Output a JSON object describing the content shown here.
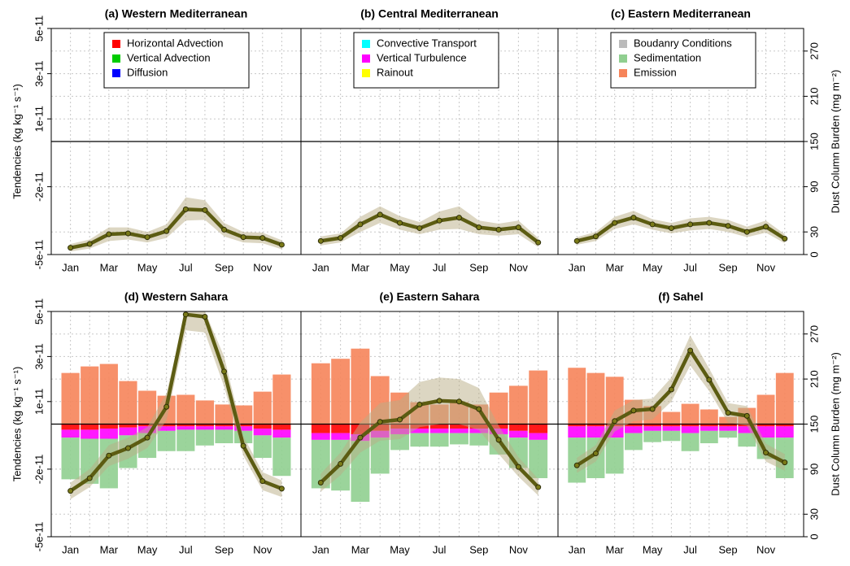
{
  "chart_data": [
    {
      "type": "bar-line",
      "title": "(a) Western Mediterranean",
      "ylabel": "Tendencies (kg kg⁻¹ s⁻¹)",
      "categories": [
        "Jan",
        null,
        "Mar",
        null,
        "May",
        null,
        "Jul",
        null,
        "Sep",
        null,
        "Nov",
        null
      ],
      "ylim": [
        -5e-11,
        5e-11
      ],
      "y2lim": [
        0,
        300
      ],
      "grid": true,
      "yticks": [
        {
          "value": 5e-11,
          "label": "5e-11"
        },
        {
          "value": 3e-11,
          "label": "3e-11"
        },
        {
          "value": 1e-11,
          "label": "1e-11"
        },
        {
          "value": -2e-11,
          "label": "-2e-11"
        },
        {
          "value": -5e-11,
          "label": "-5e-11"
        }
      ],
      "series": [
        {
          "name": "Horizontal Advection",
          "color": "#ff0000",
          "values": [
            0,
            0,
            0,
            0,
            0,
            0,
            0,
            0,
            0,
            0,
            0,
            0
          ]
        },
        {
          "name": "Vertical Advection",
          "color": "#00cc00",
          "values": [
            0,
            0,
            0,
            0,
            0,
            0,
            0,
            0,
            0,
            0,
            0,
            0
          ]
        },
        {
          "name": "Diffusion",
          "color": "#0000ff",
          "values": [
            0,
            0,
            0,
            0,
            0,
            0,
            0,
            0,
            0,
            0,
            0,
            0
          ]
        },
        {
          "axis": "y2",
          "color": "#5c5c12",
          "values": [
            9,
            14,
            27,
            28,
            23,
            31,
            60,
            59,
            33,
            23,
            22,
            13
          ],
          "lower": [
            4,
            8,
            18,
            20,
            16,
            22,
            45,
            46,
            24,
            16,
            15,
            7
          ],
          "upper": [
            14,
            20,
            36,
            36,
            30,
            40,
            76,
            72,
            42,
            30,
            29,
            19
          ]
        }
      ]
    },
    {
      "type": "bar-line",
      "title": "(b) Central Mediterranean",
      "categories": [
        "Jan",
        null,
        "Mar",
        null,
        "May",
        null,
        "Jul",
        null,
        "Sep",
        null,
        "Nov",
        null
      ],
      "ylim": [
        -5e-11,
        5e-11
      ],
      "y2lim": [
        0,
        300
      ],
      "grid": true,
      "series": [
        {
          "name": "Convective Transport",
          "color": "#00ffff",
          "values": [
            0,
            0,
            0,
            0,
            0,
            0,
            0,
            0,
            0,
            0,
            0,
            0
          ]
        },
        {
          "name": "Vertical Turbulence",
          "color": "#ff00ff",
          "values": [
            0,
            0,
            0,
            0,
            0,
            0,
            0,
            0,
            0,
            0,
            0,
            0
          ]
        },
        {
          "name": "Rainout",
          "color": "#ffff00",
          "values": [
            0,
            0,
            0,
            0,
            0,
            0,
            0,
            0,
            0,
            0,
            0,
            0
          ]
        },
        {
          "axis": "y2",
          "color": "#5c5c12",
          "values": [
            18,
            22,
            40,
            53,
            42,
            35,
            45,
            49,
            36,
            33,
            36,
            16
          ],
          "lower": [
            12,
            16,
            30,
            42,
            33,
            27,
            33,
            34,
            27,
            25,
            27,
            10
          ],
          "upper": [
            24,
            28,
            50,
            64,
            51,
            43,
            57,
            64,
            45,
            41,
            45,
            22
          ]
        }
      ]
    },
    {
      "type": "bar-line",
      "title": "(c) Eastern Mediterranean",
      "y2label": "Dust Column Burden (mg m⁻²)",
      "categories": [
        "Jan",
        null,
        "Mar",
        null,
        "May",
        null,
        "Jul",
        null,
        "Sep",
        null,
        "Nov",
        null
      ],
      "ylim": [
        -5e-11,
        5e-11
      ],
      "y2lim": [
        0,
        300
      ],
      "y2ticks": [
        0,
        30,
        90,
        150,
        210,
        270
      ],
      "grid": true,
      "series": [
        {
          "name": "Boudanry Conditions",
          "color": "#bbbbbb",
          "values": [
            0,
            0,
            0,
            0,
            0,
            0,
            0,
            0,
            0,
            0,
            0,
            0
          ]
        },
        {
          "name": "Sedimentation",
          "color": "#90cf90",
          "values": [
            0,
            0,
            0,
            0,
            0,
            0,
            0,
            0,
            0,
            0,
            0,
            0
          ]
        },
        {
          "name": "Emission",
          "color": "#f6845a",
          "values": [
            0,
            0,
            0,
            0,
            0,
            0,
            0,
            0,
            0,
            0,
            0,
            0
          ]
        },
        {
          "axis": "y2",
          "color": "#5c5c12",
          "values": [
            18,
            24,
            42,
            49,
            40,
            35,
            40,
            42,
            38,
            30,
            37,
            21
          ],
          "lower": [
            13,
            18,
            34,
            40,
            33,
            28,
            32,
            34,
            30,
            23,
            29,
            15
          ],
          "upper": [
            23,
            30,
            50,
            58,
            47,
            42,
            48,
            50,
            46,
            37,
            45,
            27
          ]
        }
      ]
    },
    {
      "type": "bar-line",
      "title": "(d) Western Sahara",
      "ylabel": "Tendencies (kg kg⁻¹ s⁻¹)",
      "categories": [
        "Jan",
        null,
        "Mar",
        null,
        "May",
        null,
        "Jul",
        null,
        "Sep",
        null,
        "Nov",
        null
      ],
      "ylim": [
        -5e-11,
        5e-11
      ],
      "y2lim": [
        0,
        300
      ],
      "grid": true,
      "yticks": [
        {
          "value": 5e-11,
          "label": "5e-11"
        },
        {
          "value": 3e-11,
          "label": "3e-11"
        },
        {
          "value": 1e-11,
          "label": "1e-11"
        },
        {
          "value": -2e-11,
          "label": "-2e-11"
        },
        {
          "value": -5e-11,
          "label": "-5e-11"
        }
      ],
      "series": [
        {
          "color": "#f6845a",
          "values": [
            2.27e-11,
            2.56e-11,
            2.67e-11,
            1.91e-11,
            1.48e-11,
            1.26e-11,
            1.3e-11,
            1.05e-11,
            8.7e-12,
            8.3e-12,
            1.44e-11,
            2.2e-11
          ]
        },
        {
          "color": "#ff0000",
          "values": [
            -2.5e-12,
            -2.5e-12,
            -2e-12,
            -1.5e-12,
            -1e-12,
            -1e-12,
            -1e-12,
            -1e-12,
            -1e-12,
            -1e-12,
            -2e-12,
            -2.5e-12
          ]
        },
        {
          "color": "#ff00ff",
          "values": [
            -3.5e-12,
            -4e-12,
            -4.5e-12,
            -3.5e-12,
            -3e-12,
            -2e-12,
            -1.5e-12,
            -1.5e-12,
            -1.5e-12,
            -2e-12,
            -3e-12,
            -3.5e-12
          ]
        },
        {
          "color": "#90cf90",
          "values": [
            -1.85e-11,
            -2e-11,
            -2.2e-11,
            -1.45e-11,
            -1.1e-11,
            -9e-12,
            -9.5e-12,
            -7e-12,
            -6e-12,
            -5.5e-12,
            -1e-11,
            -1.7e-11
          ]
        },
        {
          "axis": "y2",
          "color": "#5c5c12",
          "values": [
            61,
            78,
            108,
            118,
            132,
            173,
            296,
            293,
            220,
            121,
            74,
            64
          ],
          "lower": [
            50,
            66,
            94,
            104,
            118,
            155,
            275,
            272,
            200,
            108,
            62,
            53
          ],
          "upper": [
            72,
            90,
            122,
            132,
            146,
            191,
            300,
            300,
            240,
            134,
            86,
            75
          ]
        }
      ]
    },
    {
      "type": "bar-line",
      "title": "(e) Eastern Sahara",
      "categories": [
        "Jan",
        null,
        "Mar",
        null,
        "May",
        null,
        "Jul",
        null,
        "Sep",
        null,
        "Nov",
        null
      ],
      "ylim": [
        -5e-11,
        5e-11
      ],
      "y2lim": [
        0,
        300
      ],
      "grid": true,
      "series": [
        {
          "color": "#f6845a",
          "values": [
            2.7e-11,
            2.9e-11,
            3.35e-11,
            2.13e-11,
            1.4e-11,
            9.7e-12,
            8.7e-12,
            9.7e-12,
            8.7e-12,
            1.4e-11,
            1.7e-11,
            2.38e-11
          ]
        },
        {
          "color": "#ff0000",
          "values": [
            -4e-12,
            -4e-12,
            -4.5e-12,
            -3e-12,
            -2e-12,
            -2e-12,
            -2e-12,
            -2e-12,
            -2e-12,
            -2e-12,
            -3e-12,
            -4e-12
          ]
        },
        {
          "color": "#ff00ff",
          "values": [
            -3e-12,
            -3e-12,
            -3e-12,
            -3e-12,
            -2.5e-12,
            -2e-12,
            -2e-12,
            -2e-12,
            -2e-12,
            -2.5e-12,
            -3e-12,
            -3e-12
          ]
        },
        {
          "color": "#90cf90",
          "values": [
            -2.15e-11,
            -2.25e-11,
            -2.7e-11,
            -1.6e-11,
            -7e-12,
            -6e-12,
            -6e-12,
            -5e-12,
            -5.5e-12,
            -9e-12,
            -1.35e-11,
            -1.7e-11
          ]
        },
        {
          "axis": "y2",
          "color": "#5c5c12",
          "values": [
            72,
            97,
            132,
            153,
            156,
            176,
            181,
            180,
            170,
            129,
            93,
            66
          ],
          "lower": [
            60,
            82,
            112,
            128,
            130,
            146,
            150,
            150,
            142,
            110,
            80,
            55
          ],
          "upper": [
            84,
            112,
            152,
            178,
            182,
            206,
            212,
            210,
            198,
            148,
            106,
            77
          ]
        }
      ]
    },
    {
      "type": "bar-line",
      "title": "(f) Sahel",
      "y2label": "Dust Column Burden (mg m⁻²)",
      "categories": [
        "Jan",
        null,
        "Mar",
        null,
        "May",
        null,
        "Jul",
        null,
        "Sep",
        null,
        "Nov",
        null
      ],
      "ylim": [
        -5e-11,
        5e-11
      ],
      "y2lim": [
        0,
        300
      ],
      "y2ticks": [
        0,
        30,
        90,
        150,
        210,
        270
      ],
      "grid": true,
      "series": [
        {
          "color": "#f6845a",
          "values": [
            2.5e-11,
            2.27e-11,
            2.1e-11,
            1.08e-11,
            8e-12,
            5.4e-12,
            9e-12,
            6.5e-12,
            3.2e-12,
            7.2e-12,
            1.3e-11,
            2.27e-11
          ]
        },
        {
          "color": "#ff0000",
          "values": [
            -1e-12,
            -1e-12,
            -1e-12,
            -1e-12,
            -1e-12,
            -1e-12,
            -1e-12,
            -1e-12,
            -1e-12,
            -1e-12,
            -1e-12,
            -1e-12
          ]
        },
        {
          "color": "#ff00ff",
          "values": [
            -5e-12,
            -5e-12,
            -5e-12,
            -3e-12,
            -2e-12,
            -2e-12,
            -3e-12,
            -2e-12,
            -2e-12,
            -3e-12,
            -5e-12,
            -5e-12
          ]
        },
        {
          "color": "#90cf90",
          "values": [
            -2e-11,
            -1.8e-11,
            -1.6e-11,
            -7.5e-12,
            -5e-12,
            -4.5e-12,
            -8e-12,
            -5.5e-12,
            -3e-12,
            -6e-12,
            -9.5e-12,
            -1.8e-11
          ]
        },
        {
          "axis": "y2",
          "color": "#5c5c12",
          "values": [
            95,
            111,
            154,
            168,
            170,
            196,
            248,
            209,
            165,
            161,
            112,
            99
          ],
          "lower": [
            85,
            100,
            140,
            154,
            156,
            180,
            228,
            194,
            152,
            148,
            100,
            88
          ],
          "upper": [
            105,
            122,
            168,
            182,
            184,
            212,
            268,
            224,
            178,
            174,
            124,
            110
          ]
        }
      ]
    }
  ]
}
